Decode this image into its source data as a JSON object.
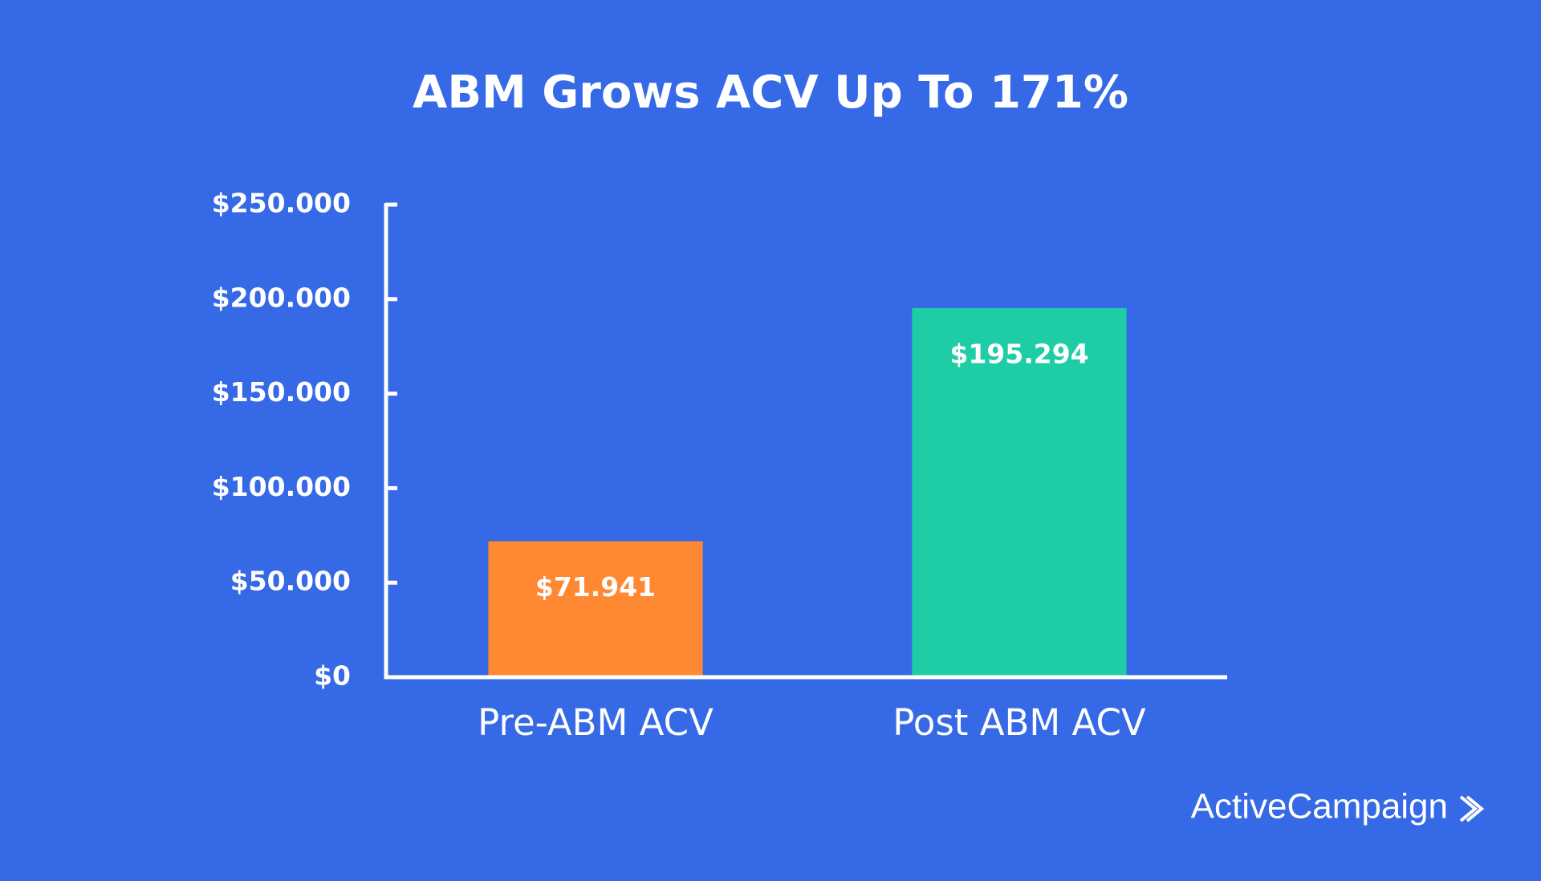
{
  "chart_data": {
    "type": "bar",
    "title": "ABM Grows ACV Up To 171%",
    "categories": [
      "Pre-ABM ACV",
      "Post ABM ACV"
    ],
    "series": [
      {
        "colors": [
          "#FF8833",
          "#1ECDA6"
        ],
        "values": [
          71941,
          195294
        ],
        "value_labels": [
          "$71.941",
          "$195.294"
        ]
      }
    ],
    "ylim": [
      0,
      250000
    ],
    "yticks": [
      {
        "value": 0,
        "label": "$0"
      },
      {
        "value": 50000,
        "label": "$50.000"
      },
      {
        "value": 100000,
        "label": "$100.000"
      },
      {
        "value": 150000,
        "label": "$150.000"
      },
      {
        "value": 200000,
        "label": "$200.000"
      },
      {
        "value": 250000,
        "label": "$250.000"
      }
    ],
    "grid": false
  },
  "brand": "ActiveCampaign"
}
